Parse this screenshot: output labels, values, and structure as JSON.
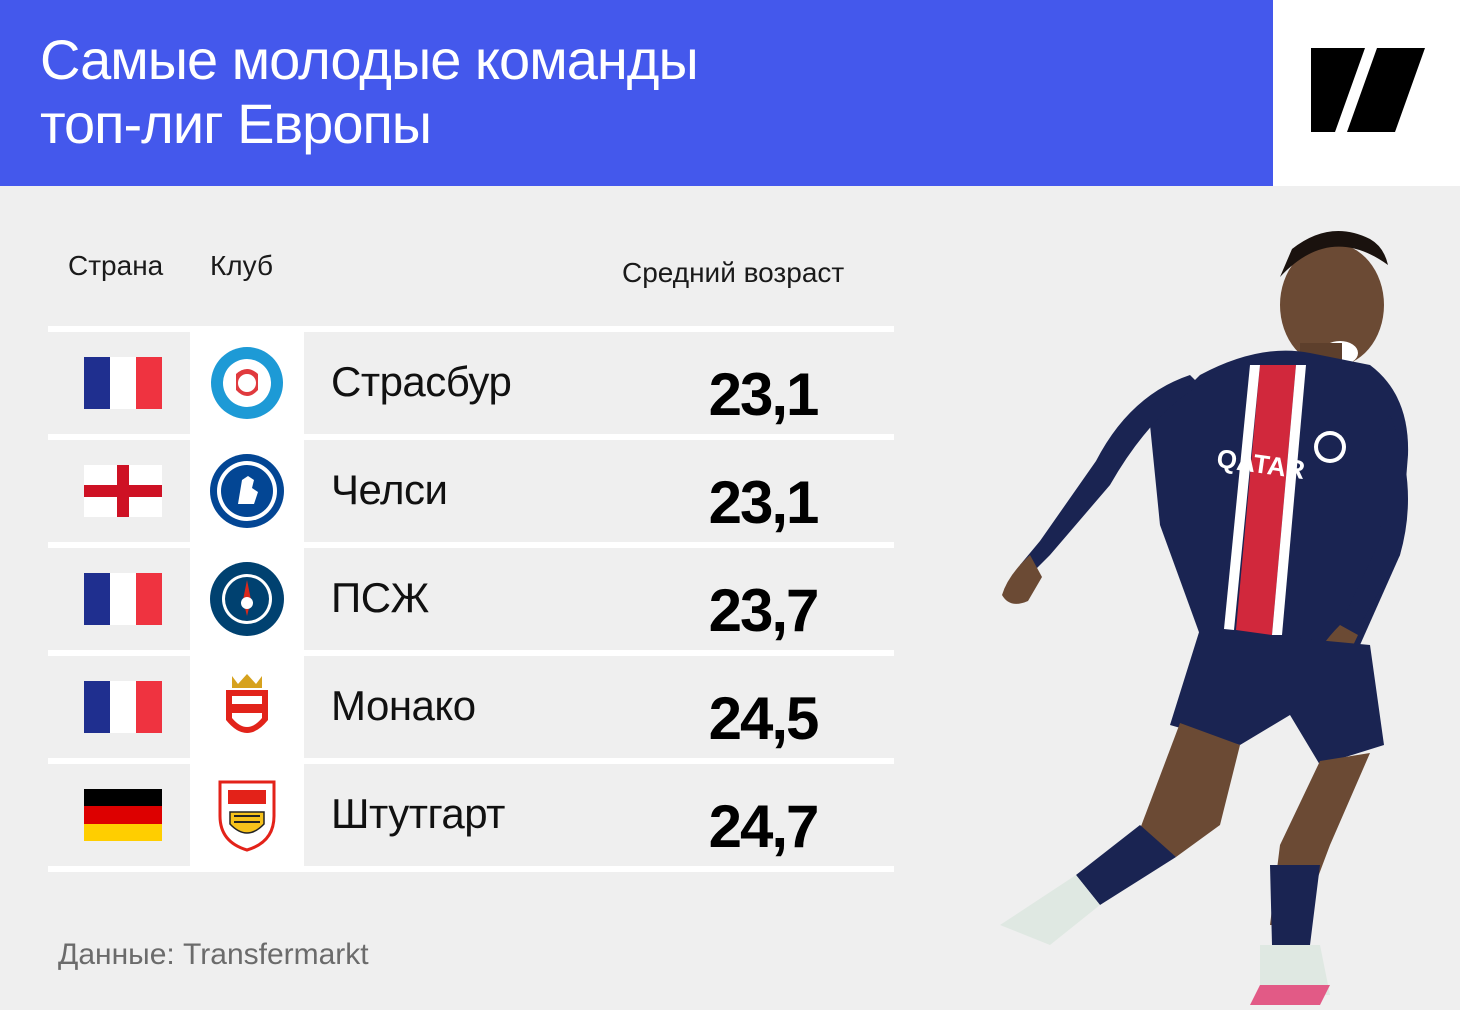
{
  "header": {
    "title_line1": "Самые молодые команды",
    "title_line2": "топ-лиг Европы",
    "background_color": "#4458ec"
  },
  "columns": {
    "country": "Страна",
    "club": "Клуб",
    "avg_age": "Средний возраст"
  },
  "rows": [
    {
      "country_flag": "france-flag",
      "crest": "strasbourg-crest",
      "club": "Страсбур",
      "age": "23,1"
    },
    {
      "country_flag": "england-flag",
      "crest": "chelsea-crest",
      "club": "Челси",
      "age": "23,1"
    },
    {
      "country_flag": "france-flag",
      "crest": "psg-crest",
      "club": "ПСЖ",
      "age": "23,7"
    },
    {
      "country_flag": "france-flag",
      "crest": "monaco-crest",
      "club": "Монако",
      "age": "24,5"
    },
    {
      "country_flag": "germany-flag",
      "crest": "stuttgart-crest",
      "club": "Штутгарт",
      "age": "24,7"
    }
  ],
  "source": "Данные: Transfermarkt"
}
